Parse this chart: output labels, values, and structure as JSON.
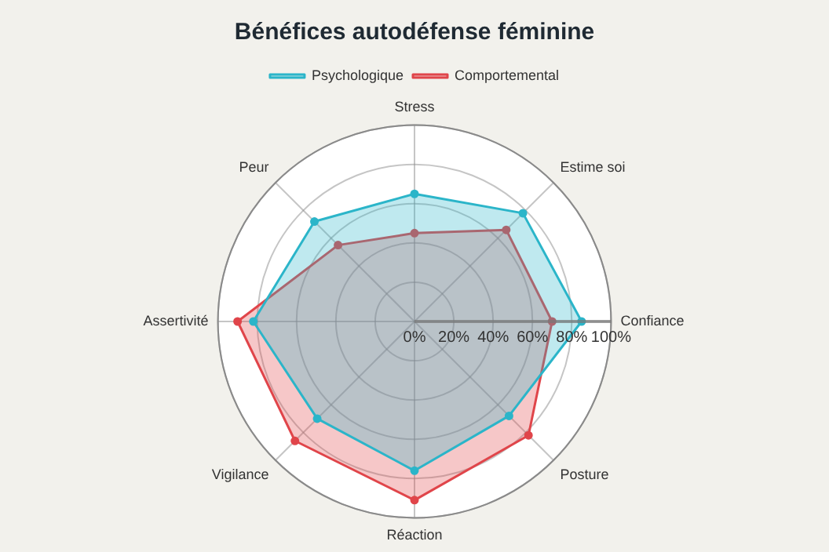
{
  "chart_data": {
    "type": "radar",
    "title": "Bénéfices autodéfense féminine",
    "categories": [
      "Stress",
      "Estime soi",
      "Confiance",
      "Posture",
      "Réaction",
      "Vigilance",
      "Assertivité",
      "Peur"
    ],
    "series": [
      {
        "name": "Psychologique",
        "color": "#2bb5c9",
        "values": [
          65,
          78,
          85,
          68,
          76,
          70,
          82,
          72
        ]
      },
      {
        "name": "Comportemental",
        "color": "#e0454a",
        "values": [
          45,
          66,
          70,
          82,
          91,
          86,
          90,
          55
        ]
      }
    ],
    "ylim": [
      0,
      100
    ],
    "yticks": [
      {
        "value": 0,
        "label": "0%"
      },
      {
        "value": 20,
        "label": "20%"
      },
      {
        "value": 40,
        "label": "40%"
      },
      {
        "value": 60,
        "label": "60%"
      },
      {
        "value": 80,
        "label": "80%"
      },
      {
        "value": 100,
        "label": "100%"
      }
    ],
    "grid": true,
    "legend": "top",
    "marker": "circle"
  }
}
